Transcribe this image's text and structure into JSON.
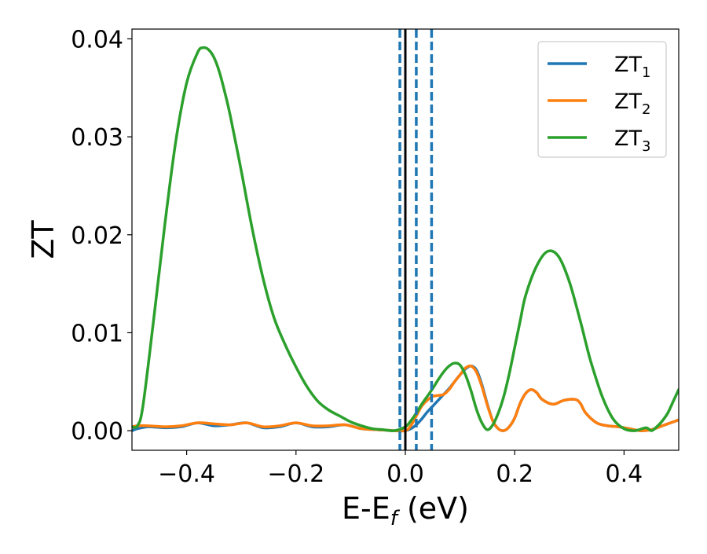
{
  "chart_data": {
    "type": "line",
    "title": "",
    "xlabel_main": "E-E",
    "xlabel_sub": "f",
    "xlabel_unit": " (eV)",
    "ylabel": "ZT",
    "xlim": [
      -0.5,
      0.5
    ],
    "ylim": [
      -0.002,
      0.041
    ],
    "x_ticks": [
      -0.4,
      -0.2,
      0.0,
      0.2,
      0.4
    ],
    "x_tick_labels": [
      "−0.4",
      "−0.2",
      "0.0",
      "0.2",
      "0.4"
    ],
    "y_ticks": [
      0.0,
      0.01,
      0.02,
      0.03,
      0.04
    ],
    "y_tick_labels": [
      "0.00",
      "0.01",
      "0.02",
      "0.03",
      "0.04"
    ],
    "grid": false,
    "legend_position": "top-right",
    "colors": {
      "ZT1": "#1f77b4",
      "ZT2": "#ff7f0e",
      "ZT3": "#2ca02c",
      "axis": "#000000"
    },
    "vertical_lines": [
      {
        "x": -0.01,
        "style": "dashed",
        "color": "#1f77b4"
      },
      {
        "x": 0.0,
        "style": "solid",
        "color": "#000000"
      },
      {
        "x": 0.02,
        "style": "dashed",
        "color": "#1f77b4"
      },
      {
        "x": 0.048,
        "style": "dashed",
        "color": "#1f77b4"
      }
    ],
    "series": [
      {
        "name": "ZT",
        "sub": "1",
        "color": "#1f77b4",
        "x": [
          -0.5,
          -0.49,
          -0.47,
          -0.44,
          -0.41,
          -0.38,
          -0.35,
          -0.32,
          -0.29,
          -0.26,
          -0.23,
          -0.2,
          -0.17,
          -0.14,
          -0.11,
          -0.08,
          -0.05,
          -0.02,
          0.0,
          0.01,
          0.02,
          0.03,
          0.04,
          0.05,
          0.06,
          0.07,
          0.08,
          0.09,
          0.1,
          0.11,
          0.12,
          0.13,
          0.14,
          0.15,
          0.16,
          0.17,
          0.18,
          0.19,
          0.2,
          0.21,
          0.22,
          0.23,
          0.24,
          0.25,
          0.27,
          0.29,
          0.31,
          0.32,
          0.33,
          0.35,
          0.37,
          0.39,
          0.41,
          0.43,
          0.45,
          0.47,
          0.49,
          0.5
        ],
        "y": [
          0.0,
          0.0002,
          0.0004,
          0.0003,
          0.0004,
          0.0008,
          0.0005,
          0.0006,
          0.0008,
          0.0003,
          0.0004,
          0.0008,
          0.0004,
          0.0004,
          0.0006,
          0.0002,
          0.0001,
          0.0,
          0.0,
          0.0002,
          0.0006,
          0.0012,
          0.0019,
          0.0025,
          0.0031,
          0.0037,
          0.0043,
          0.005,
          0.0057,
          0.0063,
          0.0066,
          0.0062,
          0.0047,
          0.0027,
          0.001,
          0.0002,
          0.0,
          0.0004,
          0.0013,
          0.0028,
          0.0038,
          0.0042,
          0.0039,
          0.0032,
          0.0027,
          0.0031,
          0.0032,
          0.0028,
          0.0018,
          0.0008,
          0.0005,
          0.0004,
          0.0002,
          0.0,
          0.0001,
          0.0005,
          0.0009,
          0.0011
        ]
      },
      {
        "name": "ZT",
        "sub": "2",
        "color": "#ff7f0e",
        "x": [
          -0.5,
          -0.49,
          -0.47,
          -0.44,
          -0.41,
          -0.38,
          -0.35,
          -0.32,
          -0.29,
          -0.26,
          -0.23,
          -0.2,
          -0.17,
          -0.14,
          -0.11,
          -0.08,
          -0.05,
          -0.02,
          0.0,
          0.01,
          0.02,
          0.03,
          0.04,
          0.05,
          0.06,
          0.07,
          0.08,
          0.09,
          0.1,
          0.11,
          0.12,
          0.13,
          0.14,
          0.15,
          0.16,
          0.17,
          0.18,
          0.19,
          0.2,
          0.21,
          0.22,
          0.23,
          0.24,
          0.25,
          0.27,
          0.29,
          0.31,
          0.32,
          0.33,
          0.35,
          0.37,
          0.39,
          0.41,
          0.43,
          0.45,
          0.47,
          0.49,
          0.5
        ],
        "y": [
          0.0004,
          0.0005,
          0.0005,
          0.0004,
          0.0005,
          0.0008,
          0.0007,
          0.0006,
          0.0008,
          0.0004,
          0.0005,
          0.0008,
          0.0005,
          0.0005,
          0.0006,
          0.0002,
          0.0001,
          0.0,
          0.0,
          0.0005,
          0.0015,
          0.0025,
          0.0031,
          0.0035,
          0.0036,
          0.0037,
          0.0042,
          0.005,
          0.0057,
          0.0064,
          0.0066,
          0.006,
          0.0045,
          0.0026,
          0.001,
          0.0002,
          0.0,
          0.0004,
          0.0013,
          0.0028,
          0.0038,
          0.0042,
          0.0039,
          0.0032,
          0.0027,
          0.0031,
          0.0032,
          0.0028,
          0.0018,
          0.0008,
          0.0005,
          0.0004,
          0.0002,
          0.0,
          0.0001,
          0.0005,
          0.0009,
          0.0011
        ]
      },
      {
        "name": "ZT",
        "sub": "3",
        "color": "#2ca02c",
        "x": [
          -0.5,
          -0.49,
          -0.48,
          -0.46,
          -0.44,
          -0.42,
          -0.4,
          -0.38,
          -0.37,
          -0.36,
          -0.35,
          -0.34,
          -0.33,
          -0.32,
          -0.3,
          -0.28,
          -0.26,
          -0.24,
          -0.22,
          -0.2,
          -0.18,
          -0.16,
          -0.14,
          -0.12,
          -0.1,
          -0.08,
          -0.06,
          -0.04,
          -0.02,
          0.0,
          0.01,
          0.02,
          0.03,
          0.04,
          0.05,
          0.06,
          0.07,
          0.08,
          0.09,
          0.1,
          0.11,
          0.12,
          0.13,
          0.14,
          0.15,
          0.16,
          0.17,
          0.18,
          0.19,
          0.2,
          0.21,
          0.22,
          0.24,
          0.26,
          0.28,
          0.3,
          0.32,
          0.33,
          0.34,
          0.36,
          0.38,
          0.4,
          0.42,
          0.44,
          0.45,
          0.46,
          0.47,
          0.48,
          0.49,
          0.5
        ],
        "y": [
          0.0004,
          0.0005,
          0.0025,
          0.0115,
          0.021,
          0.0295,
          0.0355,
          0.0386,
          0.0391,
          0.0389,
          0.0381,
          0.0366,
          0.0345,
          0.0321,
          0.0265,
          0.0206,
          0.0155,
          0.0115,
          0.0088,
          0.0065,
          0.0045,
          0.003,
          0.0021,
          0.0015,
          0.0009,
          0.0005,
          0.0002,
          0.0001,
          0.0,
          0.0004,
          0.001,
          0.0018,
          0.0027,
          0.0035,
          0.0043,
          0.0052,
          0.006,
          0.0066,
          0.0069,
          0.0067,
          0.0057,
          0.0041,
          0.0022,
          0.0008,
          0.0001,
          0.0006,
          0.0018,
          0.0035,
          0.0058,
          0.0085,
          0.0112,
          0.0138,
          0.0168,
          0.0183,
          0.0178,
          0.0152,
          0.0112,
          0.009,
          0.0069,
          0.0035,
          0.0012,
          0.0002,
          0.0,
          0.0003,
          0.0,
          0.0004,
          0.001,
          0.0018,
          0.003,
          0.0042
        ]
      }
    ]
  }
}
